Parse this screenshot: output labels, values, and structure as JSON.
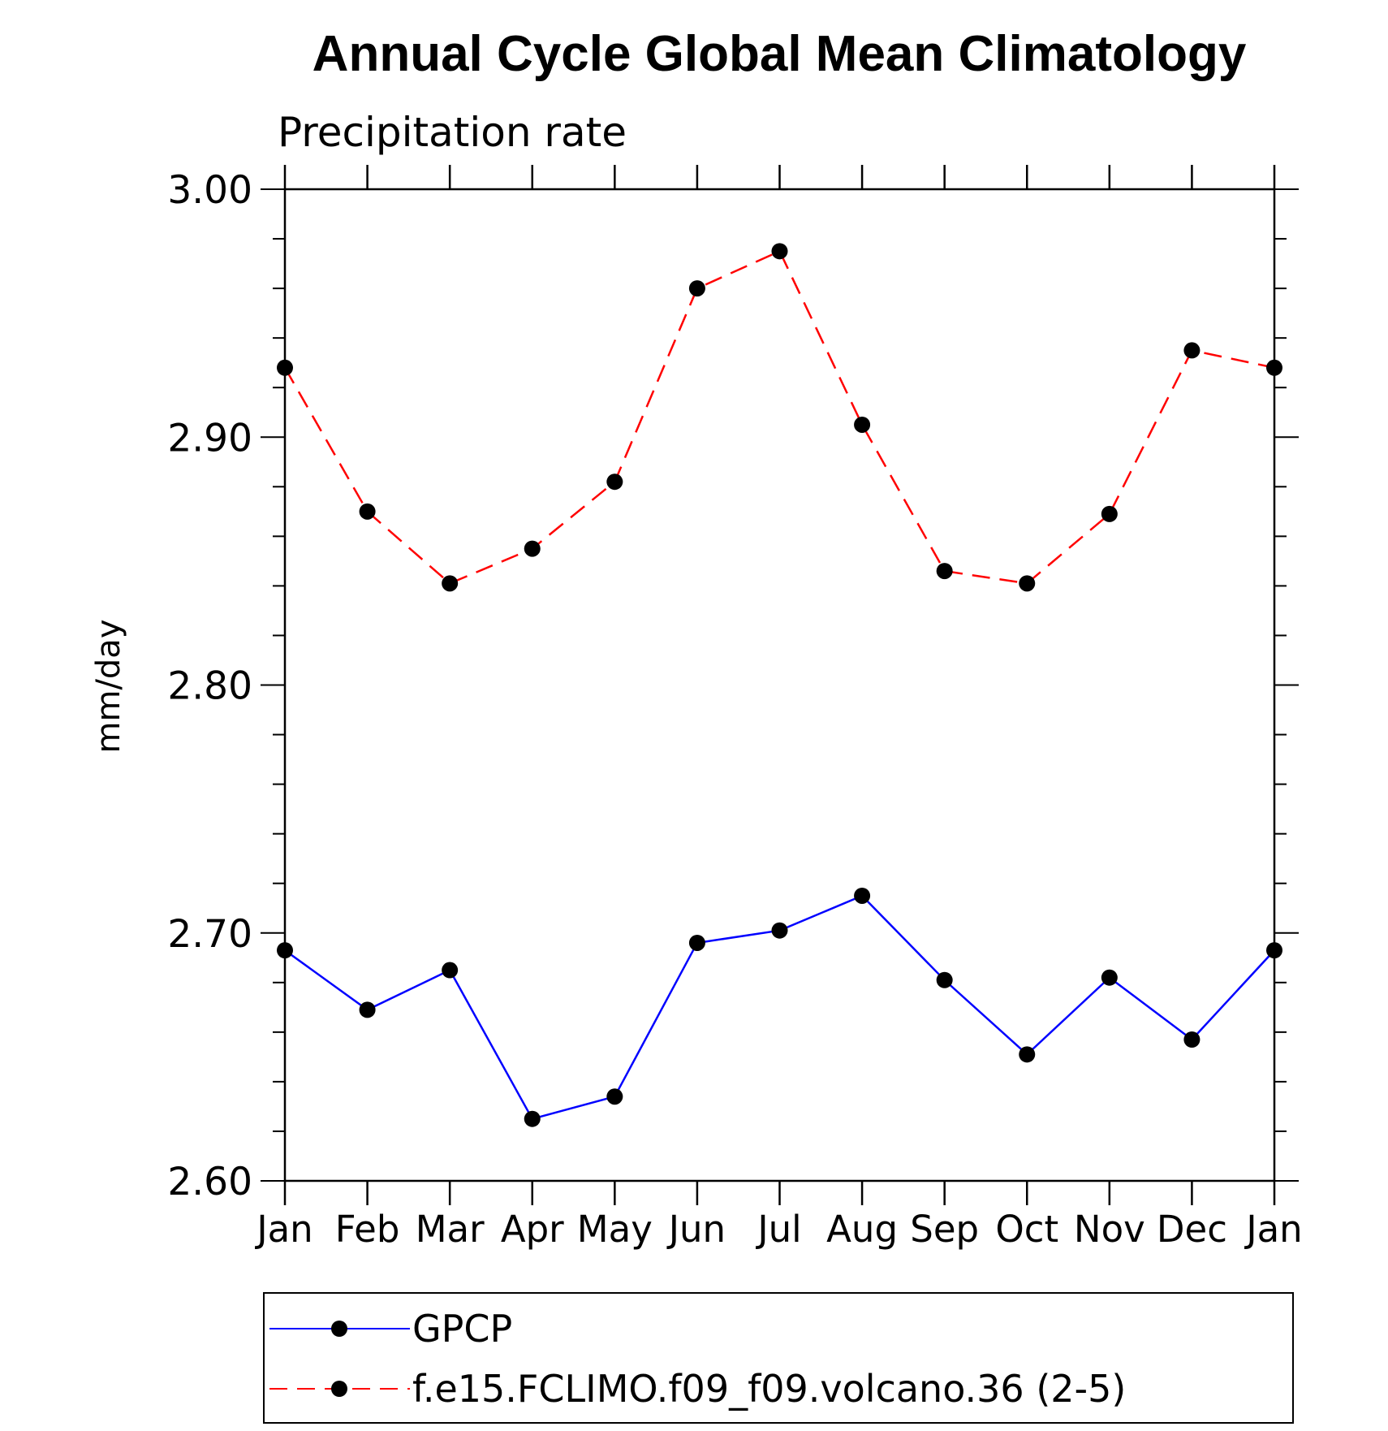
{
  "colors": {
    "gpcp": "#0000ff",
    "model": "#ff0000",
    "marker": "#000000",
    "axis": "#000000"
  },
  "chart_data": {
    "type": "line",
    "title": "Annual Cycle Global Mean Climatology",
    "subtitle": "Precipitation rate",
    "xlabel": "",
    "ylabel": "mm/day",
    "categories": [
      "Jan",
      "Feb",
      "Mar",
      "Apr",
      "May",
      "Jun",
      "Jul",
      "Aug",
      "Sep",
      "Oct",
      "Nov",
      "Dec",
      "Jan"
    ],
    "ylim": [
      2.6,
      3.0
    ],
    "yticks": [
      "2.60",
      "2.70",
      "2.80",
      "2.90",
      "3.00"
    ],
    "grid": false,
    "legend_position": "bottom",
    "series": [
      {
        "name": "GPCP",
        "line_style": "solid",
        "values": [
          2.693,
          2.669,
          2.685,
          2.625,
          2.634,
          2.696,
          2.701,
          2.715,
          2.681,
          2.651,
          2.682,
          2.657,
          2.693
        ]
      },
      {
        "name": "f.e15.FCLIMO.f09_f09.volcano.36 (2-5)",
        "line_style": "dashed",
        "values": [
          2.928,
          2.87,
          2.841,
          2.855,
          2.882,
          2.96,
          2.975,
          2.905,
          2.846,
          2.841,
          2.869,
          2.935,
          2.928
        ]
      }
    ]
  }
}
